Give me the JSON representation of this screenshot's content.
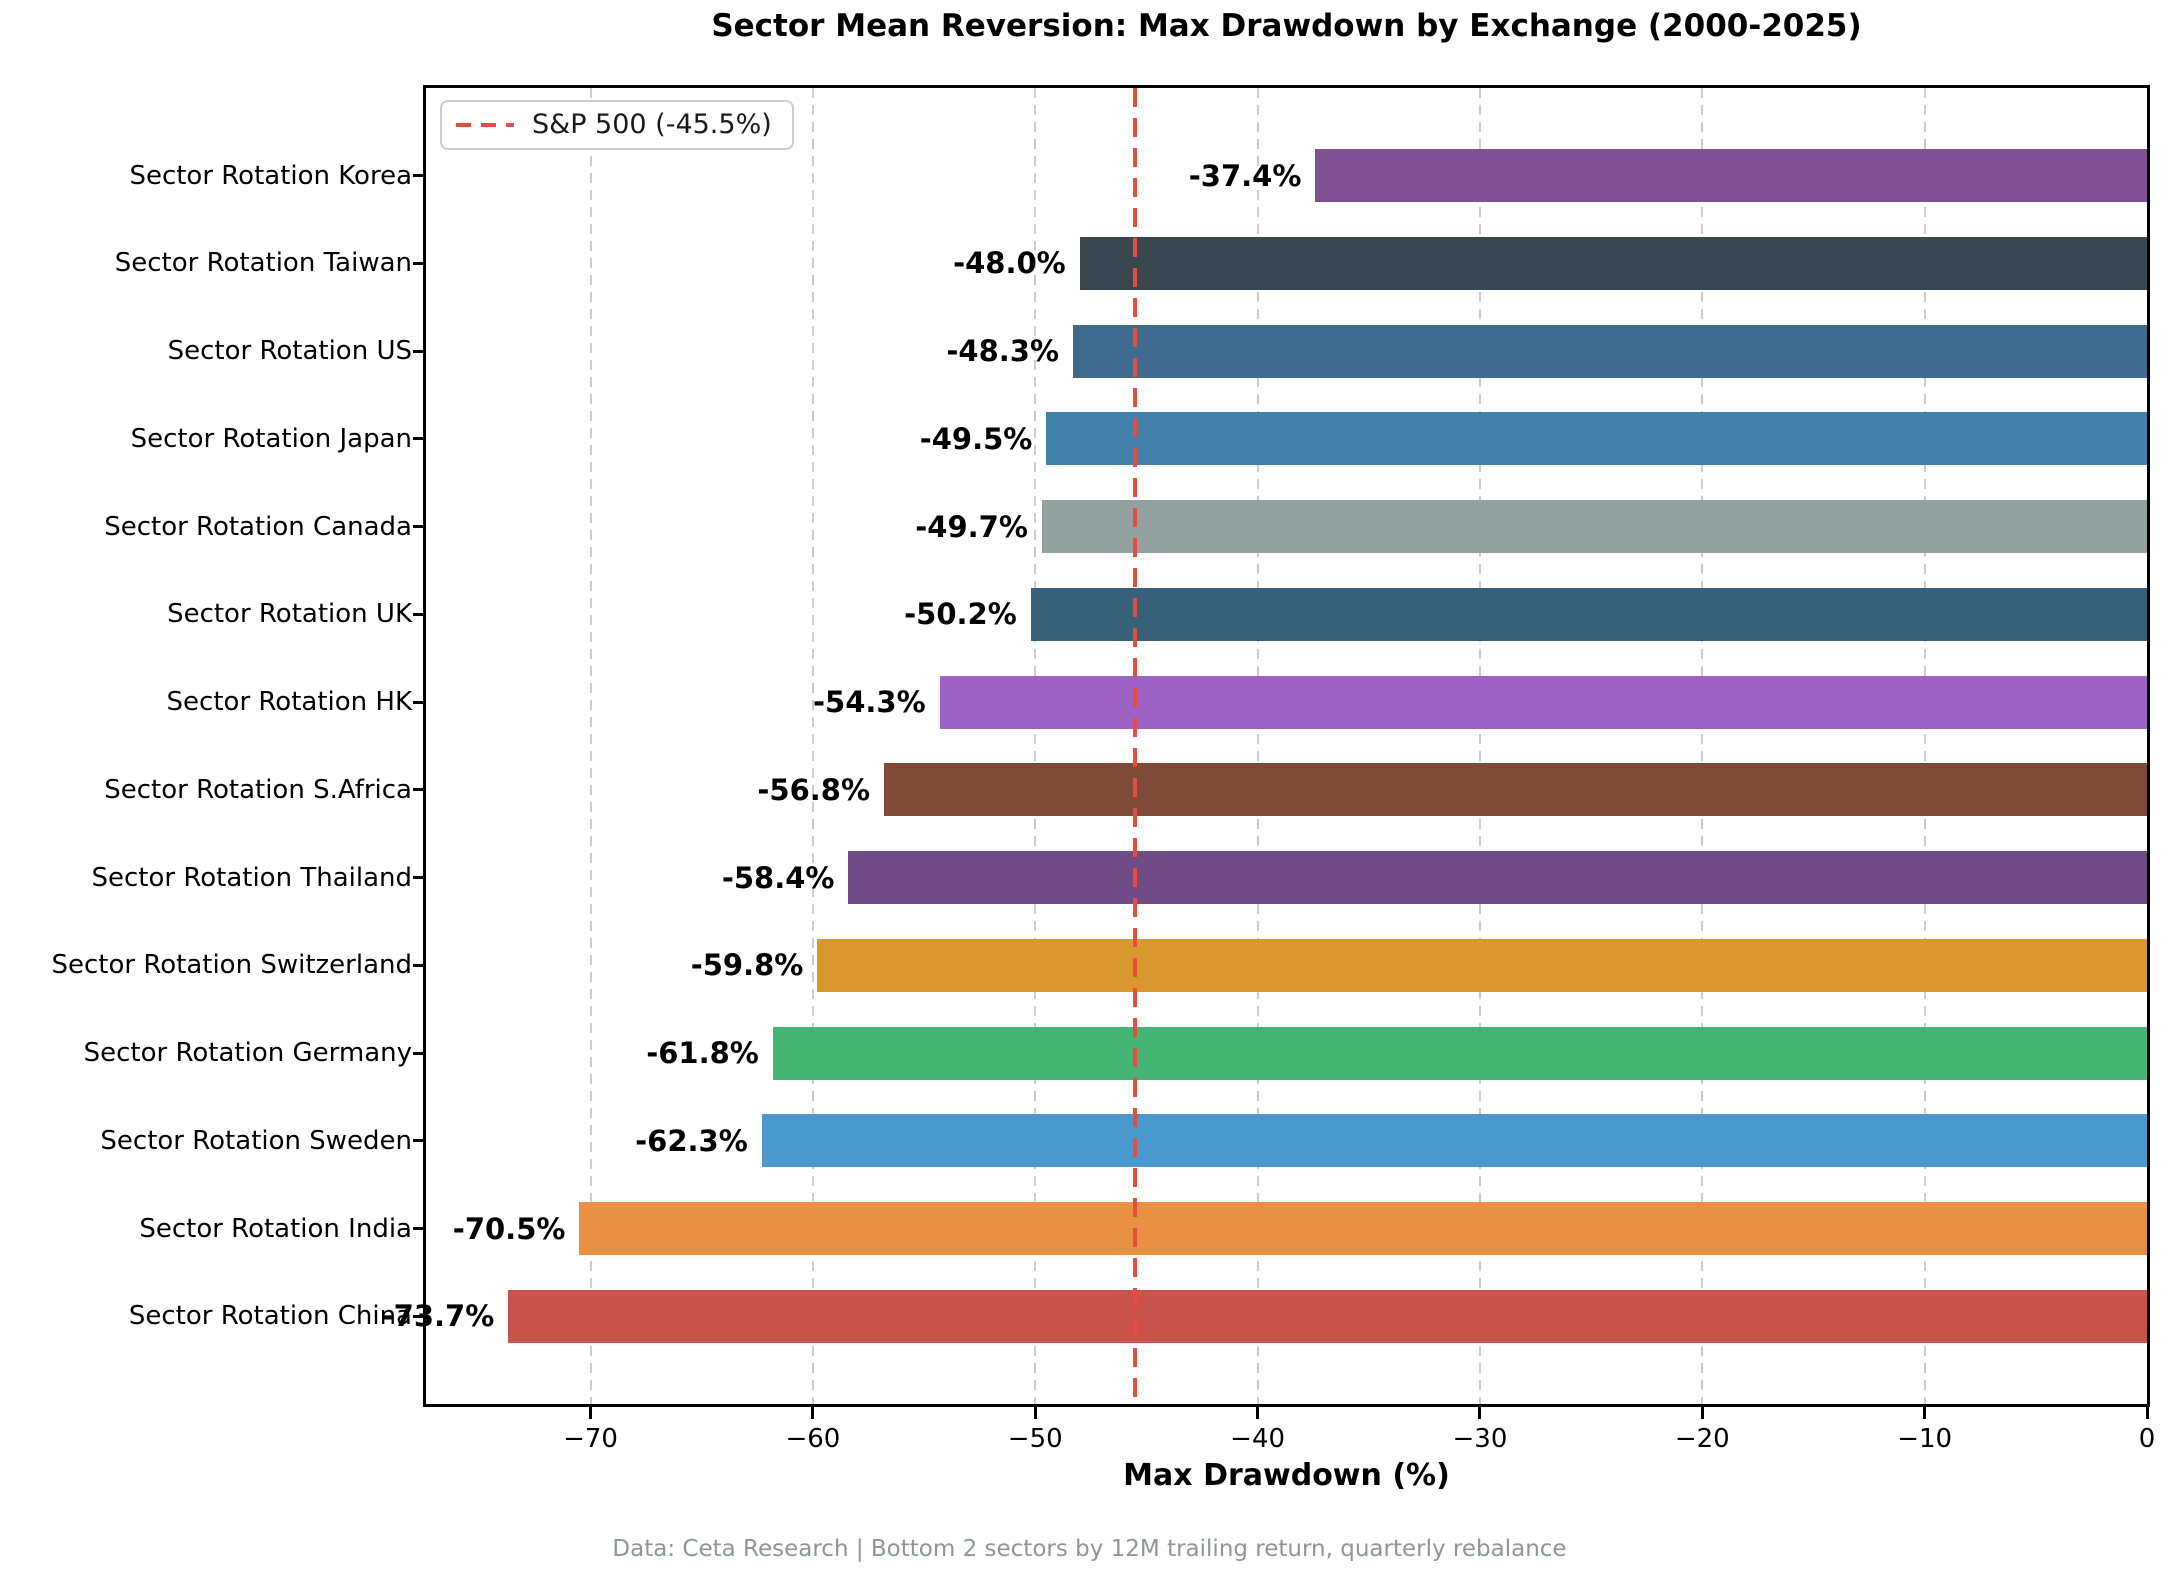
{
  "title": "Sector Mean Reversion: Max Drawdown by Exchange (2000-2025)",
  "footer": "Data: Ceta Research | Bottom 2 sectors by 12M trailing return, quarterly rebalance",
  "colors": {
    "benchmark_red": "#e74c3c",
    "grid_gray": "#cccccc",
    "footer_gray": "#8b9798",
    "axis_black": "#000000"
  },
  "chart_data": {
    "type": "bar",
    "orientation": "horizontal",
    "title": "Sector Mean Reversion: Max Drawdown by Exchange (2000-2025)",
    "xlabel": "Max Drawdown (%)",
    "ylabel": "",
    "xlim": [
      -77.4,
      0
    ],
    "x_ticks": [
      -70,
      -60,
      -50,
      -40,
      -30,
      -20,
      -10,
      0
    ],
    "x_tick_labels": [
      "−70",
      "−60",
      "−50",
      "−40",
      "−30",
      "−20",
      "−10",
      "0"
    ],
    "grid": "vertical dashed gridlines at x ticks",
    "legend_position": "upper left",
    "legend": {
      "label": "S&P 500 (-45.5%)"
    },
    "benchmark_line": {
      "label": "S&P 500",
      "value": -45.5,
      "color": "#e74c3c",
      "style": "dashed"
    },
    "categories": [
      "Sector Rotation Korea",
      "Sector Rotation Taiwan",
      "Sector Rotation US",
      "Sector Rotation Japan",
      "Sector Rotation Canada",
      "Sector Rotation UK",
      "Sector Rotation HK",
      "Sector Rotation S.Africa",
      "Sector Rotation Thailand",
      "Sector Rotation Switzerland",
      "Sector Rotation Germany",
      "Sector Rotation Sweden",
      "Sector Rotation India",
      "Sector Rotation China"
    ],
    "values": [
      -37.4,
      -48.0,
      -48.3,
      -49.5,
      -49.7,
      -50.2,
      -54.3,
      -56.8,
      -58.4,
      -59.8,
      -61.8,
      -62.3,
      -70.5,
      -73.7
    ],
    "value_labels": [
      "-37.4%",
      "-48.0%",
      "-48.3%",
      "-49.5%",
      "-49.7%",
      "-50.2%",
      "-54.3%",
      "-56.8%",
      "-58.4%",
      "-59.8%",
      "-61.8%",
      "-62.3%",
      "-70.5%",
      "-73.7%"
    ],
    "bar_colors": [
      "#805092",
      "#3b4750",
      "#3e6b8e",
      "#4380ab",
      "#94a1a1",
      "#366179",
      "#9d62c4",
      "#7f4b37",
      "#6f4c85",
      "#d9982f",
      "#45b573",
      "#4a98ce",
      "#e89143",
      "#c9534c"
    ]
  }
}
